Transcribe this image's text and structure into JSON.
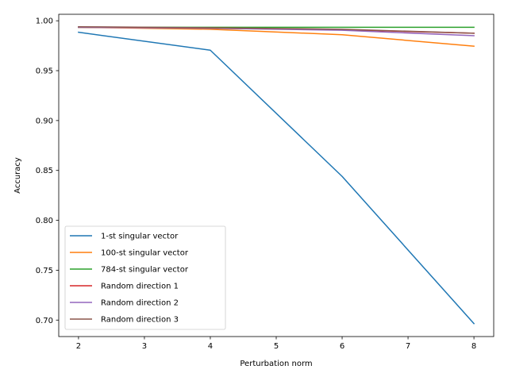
{
  "chart_data": {
    "type": "line",
    "title": "",
    "xlabel": "Perturbation norm",
    "ylabel": "Accuracy",
    "x": [
      2,
      4,
      6,
      8
    ],
    "xlim": [
      1.7,
      8.3
    ],
    "ylim": [
      0.6835,
      1.0065
    ],
    "xticks": [
      2,
      3,
      4,
      5,
      6,
      7,
      8
    ],
    "yticks": [
      0.7,
      0.75,
      0.8,
      0.85,
      0.9,
      0.95,
      1.0
    ],
    "ytick_labels": [
      "0.70",
      "0.75",
      "0.80",
      "0.85",
      "0.90",
      "0.95",
      "1.00"
    ],
    "grid": false,
    "legend_position": "lower-left",
    "series": [
      {
        "name": "1-st singular vector",
        "color": "#1f77b4",
        "values": [
          0.9885,
          0.9705,
          0.844,
          0.6965
        ]
      },
      {
        "name": "100-st singular vector",
        "color": "#ff7f0e",
        "values": [
          0.9935,
          0.9915,
          0.986,
          0.9745
        ]
      },
      {
        "name": "784-st singular vector",
        "color": "#2ca02c",
        "values": [
          0.9935,
          0.9935,
          0.9935,
          0.9935
        ]
      },
      {
        "name": "Random direction 1",
        "color": "#d62728",
        "values": [
          0.9935,
          0.9925,
          0.991,
          0.9875
        ]
      },
      {
        "name": "Random direction 2",
        "color": "#9467bd",
        "values": [
          0.9935,
          0.9925,
          0.9905,
          0.985
        ]
      },
      {
        "name": "Random direction 3",
        "color": "#8c564b",
        "values": [
          0.994,
          0.993,
          0.9915,
          0.9875
        ]
      }
    ]
  }
}
